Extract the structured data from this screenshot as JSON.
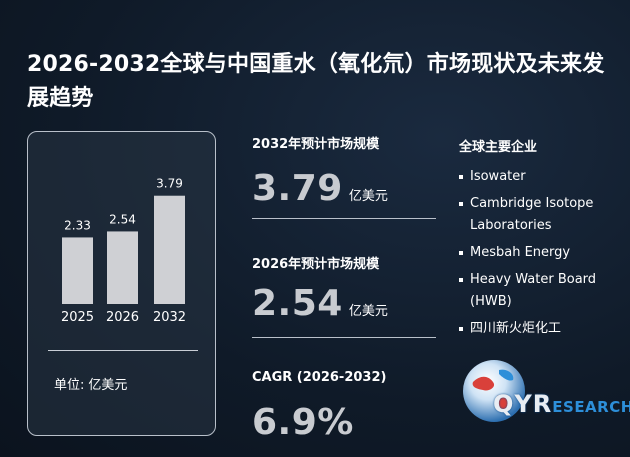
{
  "title": "2026-2032全球与中国重水（氧化氘）市场现状及未来发展趋势",
  "chart_data": {
    "type": "bar",
    "categories": [
      "2025",
      "2026",
      "2032"
    ],
    "values": [
      2.33,
      2.54,
      3.79
    ],
    "data_labels": [
      "2.33",
      "2.54",
      "3.79"
    ],
    "bar_color": "#cfd0d4",
    "title": "",
    "xlabel": "",
    "ylabel": "",
    "ylim": [
      0,
      4.2
    ],
    "grid": false,
    "legend": "none"
  },
  "unit_note": {
    "label": "单位:",
    "value": "亿美元"
  },
  "metrics": [
    {
      "label": "2032年预计市场规模",
      "value": "3.79",
      "unit": "亿美元"
    },
    {
      "label": "2026年预计市场规模",
      "value": "2.54",
      "unit": "亿美元"
    },
    {
      "label": "CAGR (2026-2032)",
      "value": "6.9%",
      "unit": ""
    }
  ],
  "companies": {
    "title": "全球主要企业",
    "items": [
      "Isowater",
      "Cambridge Isotope Laboratories",
      "Mesbah Energy",
      "Heavy Water Board (HWB)",
      "四川新火炬化工"
    ]
  },
  "logo": {
    "primary": "QYR",
    "secondary": "ESEARCH",
    "icon": "globe-icon"
  },
  "colors": {
    "background": "#0f1a28",
    "bar": "#cfd0d4",
    "value_text": "#c8cbd0",
    "logo_accent": "#2d8fd9"
  }
}
